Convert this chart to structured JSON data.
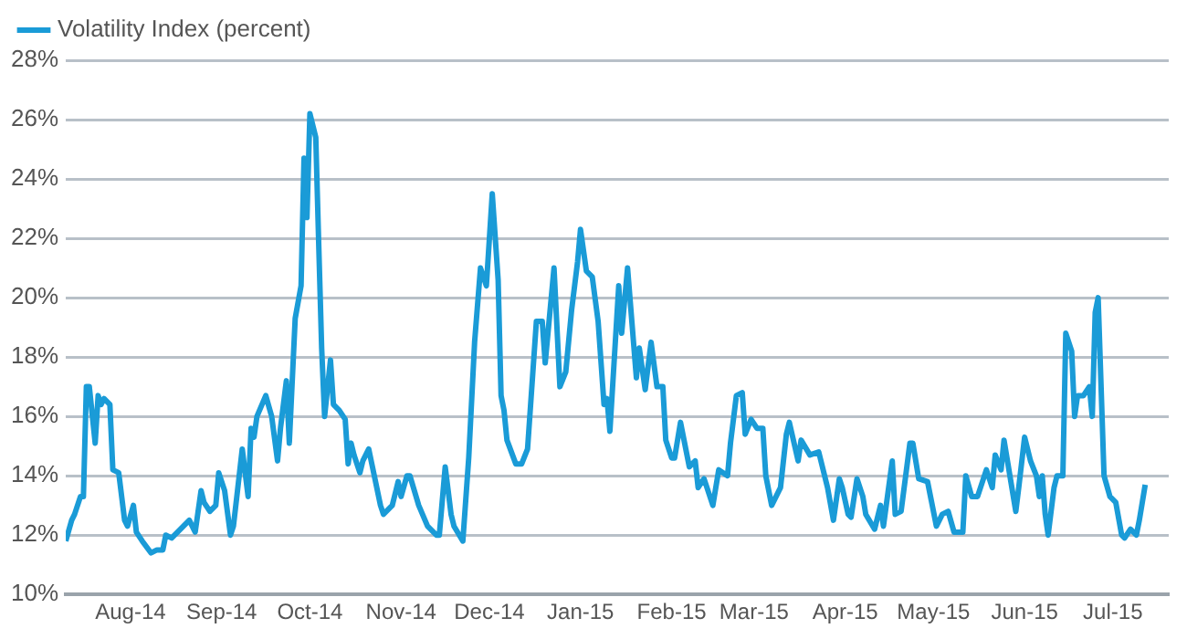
{
  "chart_data": {
    "type": "line",
    "legend": "top left",
    "grid": "y",
    "marker": "none",
    "line_style": "solid",
    "x": [
      "2014-07-10",
      "2014-07-12",
      "2014-07-13",
      "2014-07-15",
      "2014-07-16",
      "2014-07-17",
      "2014-07-18",
      "2014-07-20",
      "2014-07-21",
      "2014-07-22",
      "2014-07-23",
      "2014-07-25",
      "2014-07-26",
      "2014-07-28",
      "2014-07-30",
      "2014-07-31",
      "2014-08-02",
      "2014-08-03",
      "2014-08-05",
      "2014-08-08",
      "2014-08-10",
      "2014-08-12",
      "2014-08-13",
      "2014-08-15",
      "2014-08-18",
      "2014-08-21",
      "2014-08-23",
      "2014-08-25",
      "2014-08-26",
      "2014-08-28",
      "2014-08-30",
      "2014-08-31",
      "2014-09-02",
      "2014-09-04",
      "2014-09-05",
      "2014-09-08",
      "2014-09-10",
      "2014-09-11",
      "2014-09-12",
      "2014-09-13",
      "2014-09-16",
      "2014-09-18",
      "2014-09-20",
      "2014-09-21",
      "2014-09-23",
      "2014-09-24",
      "2014-09-26",
      "2014-09-28",
      "2014-09-29",
      "2014-09-30",
      "2014-10-01",
      "2014-10-03",
      "2014-10-04",
      "2014-10-05",
      "2014-10-06",
      "2014-10-08",
      "2014-10-09",
      "2014-10-11",
      "2014-10-13",
      "2014-10-14",
      "2014-10-15",
      "2014-10-16",
      "2014-10-18",
      "2014-10-19",
      "2014-10-21",
      "2014-10-25",
      "2014-10-26",
      "2014-10-29",
      "2014-10-31",
      "2014-11-01",
      "2014-11-03",
      "2014-11-04",
      "2014-11-07",
      "2014-11-10",
      "2014-11-13",
      "2014-11-14",
      "2014-11-16",
      "2014-11-18",
      "2014-11-19",
      "2014-11-22",
      "2014-11-24",
      "2014-11-26",
      "2014-11-28",
      "2014-11-30",
      "2014-12-02",
      "2014-12-04",
      "2014-12-05",
      "2014-12-06",
      "2014-12-07",
      "2014-12-10",
      "2014-12-12",
      "2014-12-14",
      "2014-12-17",
      "2014-12-19",
      "2014-12-20",
      "2014-12-23",
      "2014-12-25",
      "2014-12-27",
      "2014-12-29",
      "2014-12-31",
      "2015-01-01",
      "2015-01-03",
      "2015-01-05",
      "2015-01-07",
      "2015-01-09",
      "2015-01-10",
      "2015-01-11",
      "2015-01-14",
      "2015-01-15",
      "2015-01-17",
      "2015-01-20",
      "2015-01-21",
      "2015-01-23",
      "2015-01-25",
      "2015-01-27",
      "2015-01-29",
      "2015-01-30",
      "2015-02-01",
      "2015-02-02",
      "2015-02-04",
      "2015-02-05",
      "2015-02-07",
      "2015-02-09",
      "2015-02-10",
      "2015-02-12",
      "2015-02-15",
      "2015-02-17",
      "2015-02-20",
      "2015-02-21",
      "2015-02-23",
      "2015-02-25",
      "2015-02-26",
      "2015-02-28",
      "2015-03-02",
      "2015-03-04",
      "2015-03-05",
      "2015-03-07",
      "2015-03-10",
      "2015-03-12",
      "2015-03-13",
      "2015-03-16",
      "2015-03-17",
      "2015-03-20",
      "2015-03-23",
      "2015-03-26",
      "2015-03-28",
      "2015-03-30",
      "2015-03-31",
      "2015-04-02",
      "2015-04-03",
      "2015-04-05",
      "2015-04-07",
      "2015-04-08",
      "2015-04-11",
      "2015-04-13",
      "2015-04-14",
      "2015-04-17",
      "2015-04-18",
      "2015-04-20",
      "2015-04-23",
      "2015-04-24",
      "2015-04-26",
      "2015-04-29",
      "2015-05-02",
      "2015-05-04",
      "2015-05-06",
      "2015-05-08",
      "2015-05-11",
      "2015-05-12",
      "2015-05-14",
      "2015-05-16",
      "2015-05-18",
      "2015-05-19",
      "2015-05-21",
      "2015-05-22",
      "2015-05-24",
      "2015-05-25",
      "2015-05-27",
      "2015-05-29",
      "2015-05-30",
      "2015-06-01",
      "2015-06-03",
      "2015-06-05",
      "2015-06-06",
      "2015-06-07",
      "2015-06-08",
      "2015-06-09",
      "2015-06-11",
      "2015-06-12",
      "2015-06-14",
      "2015-06-15",
      "2015-06-17",
      "2015-06-18",
      "2015-06-19",
      "2015-06-21",
      "2015-06-23",
      "2015-06-24",
      "2015-06-25",
      "2015-06-26",
      "2015-06-28",
      "2015-06-30",
      "2015-07-02",
      "2015-07-04",
      "2015-07-05",
      "2015-07-07",
      "2015-07-09",
      "2015-07-10",
      "2015-07-12"
    ],
    "series": [
      {
        "name": "Volatility Index (percent)",
        "color": "#1a9bd7",
        "values": [
          11.8,
          12.5,
          12.7,
          13.3,
          13.3,
          17.0,
          17.0,
          15.1,
          16.7,
          16.4,
          16.6,
          16.4,
          14.2,
          14.1,
          12.5,
          12.3,
          13.0,
          12.1,
          11.8,
          11.4,
          11.5,
          11.5,
          12.0,
          11.9,
          12.2,
          12.5,
          12.1,
          13.5,
          13.1,
          12.8,
          13.0,
          14.1,
          13.5,
          12.0,
          12.3,
          14.9,
          13.3,
          15.6,
          15.3,
          16.0,
          16.7,
          16.0,
          14.5,
          15.6,
          17.2,
          15.1,
          19.3,
          20.4,
          24.7,
          22.7,
          26.2,
          25.4,
          21.8,
          18.3,
          16.0,
          17.9,
          16.4,
          16.2,
          15.9,
          14.4,
          15.1,
          14.7,
          14.1,
          14.5,
          14.9,
          13.0,
          12.7,
          13.0,
          13.8,
          13.3,
          14.0,
          14.0,
          13.0,
          12.3,
          12.0,
          12.0,
          14.3,
          12.7,
          12.3,
          11.8,
          14.6,
          18.5,
          21.0,
          20.4,
          23.5,
          20.6,
          16.7,
          16.2,
          15.2,
          14.4,
          14.4,
          14.9,
          19.2,
          19.2,
          17.8,
          21.0,
          17.0,
          17.5,
          19.6,
          21.2,
          22.3,
          20.9,
          20.7,
          19.2,
          16.4,
          16.6,
          15.5,
          20.4,
          18.8,
          21.0,
          17.3,
          18.3,
          16.9,
          18.5,
          17.0,
          17.0,
          15.2,
          14.6,
          14.6,
          15.8,
          15.3,
          14.3,
          14.5,
          13.6,
          13.9,
          13.0,
          14.2,
          14.0,
          15.1,
          16.7,
          16.8,
          15.4,
          15.9,
          15.6,
          15.6,
          14.0,
          13.0,
          13.6,
          15.4,
          15.8,
          14.5,
          15.2,
          14.7,
          14.8,
          13.6,
          12.5,
          13.9,
          13.6,
          12.7,
          12.6,
          13.9,
          13.3,
          12.7,
          12.2,
          13.0,
          12.3,
          14.5,
          12.7,
          12.8,
          15.1,
          15.1,
          13.9,
          13.8,
          12.3,
          12.7,
          12.8,
          12.1,
          12.1,
          14.0,
          13.3,
          13.3,
          13.9,
          14.2,
          13.6,
          14.7,
          14.2,
          15.2,
          14.0,
          12.8,
          13.6,
          15.3,
          14.5,
          14.0,
          13.3,
          14.0,
          12.7,
          12.0,
          13.6,
          14.0,
          14.0,
          18.8,
          18.2,
          16.0,
          16.7,
          16.7,
          17.0,
          16.0,
          19.5,
          20.0,
          14.0,
          13.3,
          13.1,
          12.0,
          11.9,
          12.2,
          12.0,
          12.5,
          13.7
        ]
      }
    ],
    "xlim": [
      "2014-07-10",
      "2015-07-20"
    ],
    "xticks": [
      {
        "value": "2014-08-01",
        "label": "Aug-14"
      },
      {
        "value": "2014-09-01",
        "label": "Sep-14"
      },
      {
        "value": "2014-10-01",
        "label": "Oct-14"
      },
      {
        "value": "2014-11-01",
        "label": "Nov-14"
      },
      {
        "value": "2014-12-01",
        "label": "Dec-14"
      },
      {
        "value": "2015-01-01",
        "label": "Jan-15"
      },
      {
        "value": "2015-02-01",
        "label": "Feb-15"
      },
      {
        "value": "2015-03-01",
        "label": "Mar-15"
      },
      {
        "value": "2015-04-01",
        "label": "Apr-15"
      },
      {
        "value": "2015-05-01",
        "label": "May-15"
      },
      {
        "value": "2015-06-01",
        "label": "Jun-15"
      },
      {
        "value": "2015-07-01",
        "label": "Jul-15"
      }
    ],
    "ylim": [
      10,
      28
    ],
    "yticks": [
      {
        "value": 10,
        "label": "10%"
      },
      {
        "value": 12,
        "label": "12%"
      },
      {
        "value": 14,
        "label": "14%"
      },
      {
        "value": 16,
        "label": "16%"
      },
      {
        "value": 18,
        "label": "18%"
      },
      {
        "value": 20,
        "label": "20%"
      },
      {
        "value": 22,
        "label": "22%"
      },
      {
        "value": 24,
        "label": "24%"
      },
      {
        "value": 26,
        "label": "26%"
      },
      {
        "value": 28,
        "label": "28%"
      }
    ]
  }
}
